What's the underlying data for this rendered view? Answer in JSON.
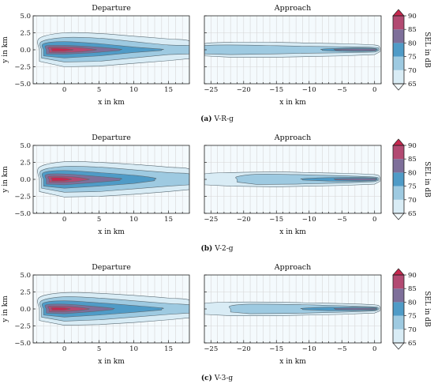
{
  "chart_data": [
    {
      "id": "a",
      "caption_tag": "(a)",
      "caption_text": "V-R-g",
      "left": {
        "title": "Departure",
        "xlabel": "x in km",
        "ylabel": "y in km",
        "xlim": [
          -4.5,
          18
        ],
        "ylim": [
          -5,
          5
        ],
        "xticks": [
          0,
          5,
          10,
          15
        ],
        "yticks": [
          -5.0,
          -2.5,
          0.0,
          2.5,
          5.0
        ],
        "ytick_labels": [
          "−5.0",
          "−2.5",
          "0.0",
          "2.5",
          "5.0"
        ],
        "contours": [
          {
            "level": 65,
            "x0": -3.6,
            "x1": 18,
            "y_profile": [
              [
                -3.6,
                1.7
              ],
              [
                0,
                2.5
              ],
              [
                5,
                2.4
              ],
              [
                10,
                2.0
              ],
              [
                15,
                1.6
              ],
              [
                18,
                1.3
              ]
            ]
          },
          {
            "level": 70,
            "x0": -3.3,
            "x1": 18,
            "y_profile": [
              [
                -3.3,
                1.2
              ],
              [
                0,
                1.8
              ],
              [
                5,
                1.7
              ],
              [
                10,
                1.2
              ],
              [
                15,
                0.7
              ],
              [
                18,
                0.6
              ]
            ]
          },
          {
            "level": 75,
            "x0": -3.0,
            "x1": 14,
            "y_profile": [
              [
                -3.0,
                0.9
              ],
              [
                0,
                1.2
              ],
              [
                5,
                0.9
              ],
              [
                10,
                0.4
              ],
              [
                14,
                0.1
              ]
            ]
          },
          {
            "level": 80,
            "x0": -2.6,
            "x1": 8,
            "y_profile": [
              [
                -2.6,
                0.6
              ],
              [
                0,
                0.65
              ],
              [
                4,
                0.45
              ],
              [
                8,
                0.1
              ]
            ]
          },
          {
            "level": 85,
            "x0": -2.2,
            "x1": 4.5,
            "y_profile": [
              [
                -2.2,
                0.4
              ],
              [
                0,
                0.42
              ],
              [
                2.5,
                0.3
              ],
              [
                4.5,
                0.05
              ]
            ]
          },
          {
            "level": 90,
            "x0": -1.8,
            "x1": 1.2,
            "y_profile": [
              [
                -1.8,
                0.22
              ],
              [
                0,
                0.2
              ],
              [
                1.2,
                0.05
              ]
            ]
          }
        ]
      },
      "right": {
        "title": "Approach",
        "xlabel": "x in km",
        "xlim": [
          -26,
          1
        ],
        "ylim": [
          -5,
          5
        ],
        "xticks": [
          -25,
          -20,
          -15,
          -10,
          -5,
          0
        ],
        "xtick_labels": [
          "−25",
          "−20",
          "−15",
          "−10",
          "−5",
          "0"
        ],
        "contours": [
          {
            "level": 65,
            "x0": -26,
            "x1": 0.8,
            "y_profile": [
              [
                -26,
                0.9
              ],
              [
                -22,
                1.1
              ],
              [
                -15,
                1.1
              ],
              [
                -10,
                1.0
              ],
              [
                -5,
                0.9
              ],
              [
                0,
                0.7
              ],
              [
                0.8,
                0.3
              ]
            ]
          },
          {
            "level": 70,
            "x0": -26,
            "x1": 0.6,
            "y_profile": [
              [
                -26,
                0.6
              ],
              [
                -22,
                0.7
              ],
              [
                -15,
                0.6
              ],
              [
                -10,
                0.5
              ],
              [
                -5,
                0.45
              ],
              [
                0,
                0.35
              ],
              [
                0.6,
                0.15
              ]
            ]
          },
          {
            "level": 75,
            "x0": -8,
            "x1": 0.4,
            "y_profile": [
              [
                -8,
                0.1
              ],
              [
                -5,
                0.22
              ],
              [
                -2,
                0.25
              ],
              [
                0,
                0.2
              ],
              [
                0.4,
                0.08
              ]
            ]
          },
          {
            "level": 80,
            "x0": -6,
            "x1": 0.2,
            "y_profile": [
              [
                -6,
                0.08
              ],
              [
                -3,
                0.14
              ],
              [
                0,
                0.12
              ],
              [
                0.2,
                0.04
              ]
            ]
          }
        ]
      },
      "colorbar": {
        "label": "SEL in dB",
        "ticks": [
          65,
          70,
          75,
          80,
          85,
          90
        ],
        "range": [
          65,
          90
        ],
        "extend": "both"
      }
    },
    {
      "id": "b",
      "caption_tag": "(b)",
      "caption_text": "V-2-g",
      "left": {
        "title": "Departure",
        "xlabel": "x in km",
        "ylabel": "y in km",
        "xlim": [
          -4.5,
          18
        ],
        "ylim": [
          -5,
          5
        ],
        "xticks": [
          0,
          5,
          10,
          15
        ],
        "yticks": [
          -5.0,
          -2.5,
          0.0,
          2.5,
          5.0
        ],
        "ytick_labels": [
          "−5.0",
          "−2.5",
          "0.0",
          "2.5",
          "5.0"
        ],
        "contours": [
          {
            "level": 65,
            "x0": -3.6,
            "x1": 18,
            "y_profile": [
              [
                -3.6,
                1.8
              ],
              [
                0,
                2.6
              ],
              [
                5,
                2.5
              ],
              [
                10,
                2.2
              ],
              [
                15,
                1.8
              ],
              [
                18,
                1.5
              ]
            ]
          },
          {
            "level": 70,
            "x0": -3.3,
            "x1": 18,
            "y_profile": [
              [
                -3.3,
                1.3
              ],
              [
                0,
                1.9
              ],
              [
                5,
                1.8
              ],
              [
                10,
                1.4
              ],
              [
                15,
                1.0
              ],
              [
                18,
                0.8
              ]
            ]
          },
          {
            "level": 75,
            "x0": -3.0,
            "x1": 13,
            "y_profile": [
              [
                -3.0,
                1.0
              ],
              [
                0,
                1.3
              ],
              [
                5,
                1.0
              ],
              [
                10,
                0.6
              ],
              [
                13,
                0.2
              ]
            ]
          },
          {
            "level": 80,
            "x0": -2.6,
            "x1": 8,
            "y_profile": [
              [
                -2.6,
                0.7
              ],
              [
                0,
                0.8
              ],
              [
                4,
                0.5
              ],
              [
                8,
                0.15
              ]
            ]
          },
          {
            "level": 85,
            "x0": -2.2,
            "x1": 3.5,
            "y_profile": [
              [
                -2.2,
                0.45
              ],
              [
                0,
                0.45
              ],
              [
                2,
                0.3
              ],
              [
                3.5,
                0.05
              ]
            ]
          },
          {
            "level": 90,
            "x0": -1.8,
            "x1": 1.0,
            "y_profile": [
              [
                -1.8,
                0.25
              ],
              [
                0,
                0.22
              ],
              [
                1.0,
                0.05
              ]
            ]
          }
        ]
      },
      "right": {
        "title": "Approach",
        "xlabel": "x in km",
        "xlim": [
          -26,
          1
        ],
        "ylim": [
          -5,
          5
        ],
        "xticks": [
          -25,
          -20,
          -15,
          -10,
          -5,
          0
        ],
        "xtick_labels": [
          "−25",
          "−20",
          "−15",
          "−10",
          "−5",
          "0"
        ],
        "contours": [
          {
            "level": 65,
            "x0": -26,
            "x1": 0.8,
            "y_profile": [
              [
                -26,
                0.8
              ],
              [
                -22,
                1.0
              ],
              [
                -15,
                1.1
              ],
              [
                -10,
                1.0
              ],
              [
                -5,
                0.9
              ],
              [
                0,
                0.7
              ],
              [
                0.8,
                0.3
              ]
            ]
          },
          {
            "level": 70,
            "x0": -21,
            "x1": 0.6,
            "y_profile": [
              [
                -21,
                0.4
              ],
              [
                -18,
                0.75
              ],
              [
                -12,
                0.7
              ],
              [
                -8,
                0.6
              ],
              [
                -4,
                0.5
              ],
              [
                0,
                0.35
              ],
              [
                0.6,
                0.15
              ]
            ]
          },
          {
            "level": 75,
            "x0": -11,
            "x1": 0.4,
            "y_profile": [
              [
                -11,
                0.1
              ],
              [
                -7,
                0.25
              ],
              [
                -3,
                0.28
              ],
              [
                0,
                0.22
              ],
              [
                0.4,
                0.08
              ]
            ]
          },
          {
            "level": 80,
            "x0": -6,
            "x1": 0.2,
            "y_profile": [
              [
                -6,
                0.08
              ],
              [
                -3,
                0.14
              ],
              [
                0,
                0.12
              ],
              [
                0.2,
                0.04
              ]
            ]
          }
        ]
      },
      "colorbar": {
        "label": "SEL in dB",
        "ticks": [
          65,
          70,
          75,
          80,
          85,
          90
        ],
        "range": [
          65,
          90
        ],
        "extend": "both"
      }
    },
    {
      "id": "c",
      "caption_tag": "(c)",
      "caption_text": "V-3-g",
      "left": {
        "title": "Departure",
        "xlabel": "x in km",
        "ylabel": "y in km",
        "xlim": [
          -4.5,
          18
        ],
        "ylim": [
          -5,
          5
        ],
        "xticks": [
          0,
          5,
          10,
          15
        ],
        "yticks": [
          -5.0,
          -2.5,
          0.0,
          2.5,
          5.0
        ],
        "ytick_labels": [
          "−5.0",
          "−2.5",
          "0.0",
          "2.5",
          "5.0"
        ],
        "contours": [
          {
            "level": 65,
            "x0": -3.6,
            "x1": 18,
            "y_profile": [
              [
                -3.6,
                1.7
              ],
              [
                0,
                2.4
              ],
              [
                5,
                2.3
              ],
              [
                10,
                2.0
              ],
              [
                15,
                1.6
              ],
              [
                18,
                1.3
              ]
            ]
          },
          {
            "level": 70,
            "x0": -3.3,
            "x1": 18,
            "y_profile": [
              [
                -3.3,
                1.2
              ],
              [
                0,
                1.8
              ],
              [
                5,
                1.6
              ],
              [
                10,
                1.2
              ],
              [
                15,
                0.8
              ],
              [
                18,
                0.6
              ]
            ]
          },
          {
            "level": 75,
            "x0": -3.0,
            "x1": 14,
            "y_profile": [
              [
                -3.0,
                0.9
              ],
              [
                0,
                1.2
              ],
              [
                5,
                0.9
              ],
              [
                10,
                0.5
              ],
              [
                14,
                0.15
              ]
            ]
          },
          {
            "level": 80,
            "x0": -2.6,
            "x1": 7,
            "y_profile": [
              [
                -2.6,
                0.6
              ],
              [
                0,
                0.7
              ],
              [
                4,
                0.4
              ],
              [
                7,
                0.1
              ]
            ]
          },
          {
            "level": 85,
            "x0": -2.2,
            "x1": 3.5,
            "y_profile": [
              [
                -2.2,
                0.4
              ],
              [
                0,
                0.4
              ],
              [
                2,
                0.25
              ],
              [
                3.5,
                0.05
              ]
            ]
          },
          {
            "level": 90,
            "x0": -1.8,
            "x1": 0.8,
            "y_profile": [
              [
                -1.8,
                0.2
              ],
              [
                0,
                0.18
              ],
              [
                0.8,
                0.04
              ]
            ]
          }
        ]
      },
      "right": {
        "title": "Approach",
        "xlabel": "x in km",
        "xlim": [
          -26,
          1
        ],
        "ylim": [
          -5,
          5
        ],
        "xticks": [
          -25,
          -20,
          -15,
          -10,
          -5,
          0
        ],
        "xtick_labels": [
          "−25",
          "−20",
          "−15",
          "−10",
          "−5",
          "0"
        ],
        "contours": [
          {
            "level": 65,
            "x0": -26,
            "x1": 0.8,
            "y_profile": [
              [
                -26,
                0.8
              ],
              [
                -22,
                1.0
              ],
              [
                -15,
                1.0
              ],
              [
                -10,
                0.9
              ],
              [
                -5,
                0.8
              ],
              [
                0,
                0.6
              ],
              [
                0.8,
                0.3
              ]
            ]
          },
          {
            "level": 70,
            "x0": -22,
            "x1": 0.6,
            "y_profile": [
              [
                -22,
                0.45
              ],
              [
                -19,
                0.7
              ],
              [
                -12,
                0.65
              ],
              [
                -8,
                0.55
              ],
              [
                -4,
                0.45
              ],
              [
                0,
                0.3
              ],
              [
                0.6,
                0.12
              ]
            ]
          },
          {
            "level": 75,
            "x0": -11,
            "x1": 0.4,
            "y_profile": [
              [
                -11,
                0.1
              ],
              [
                -7,
                0.25
              ],
              [
                -3,
                0.25
              ],
              [
                0,
                0.2
              ],
              [
                0.4,
                0.07
              ]
            ]
          },
          {
            "level": 80,
            "x0": -6,
            "x1": 0.2,
            "y_profile": [
              [
                -6,
                0.08
              ],
              [
                -3,
                0.13
              ],
              [
                0,
                0.1
              ],
              [
                0.2,
                0.04
              ]
            ]
          }
        ]
      },
      "colorbar": {
        "label": "SEL in dB",
        "ticks": [
          65,
          70,
          75,
          80,
          85,
          90
        ],
        "range": [
          65,
          90
        ],
        "extend": "both"
      }
    }
  ],
  "colors": {
    "band_below_65": "#f4fafd",
    "band_65_70": "#d9ecf5",
    "band_70_75": "#9ecae1",
    "band_75_80": "#4f9bc7",
    "band_80_85": "#7e6f9a",
    "band_85_90": "#b24a72",
    "band_above_90": "#c7284f"
  }
}
